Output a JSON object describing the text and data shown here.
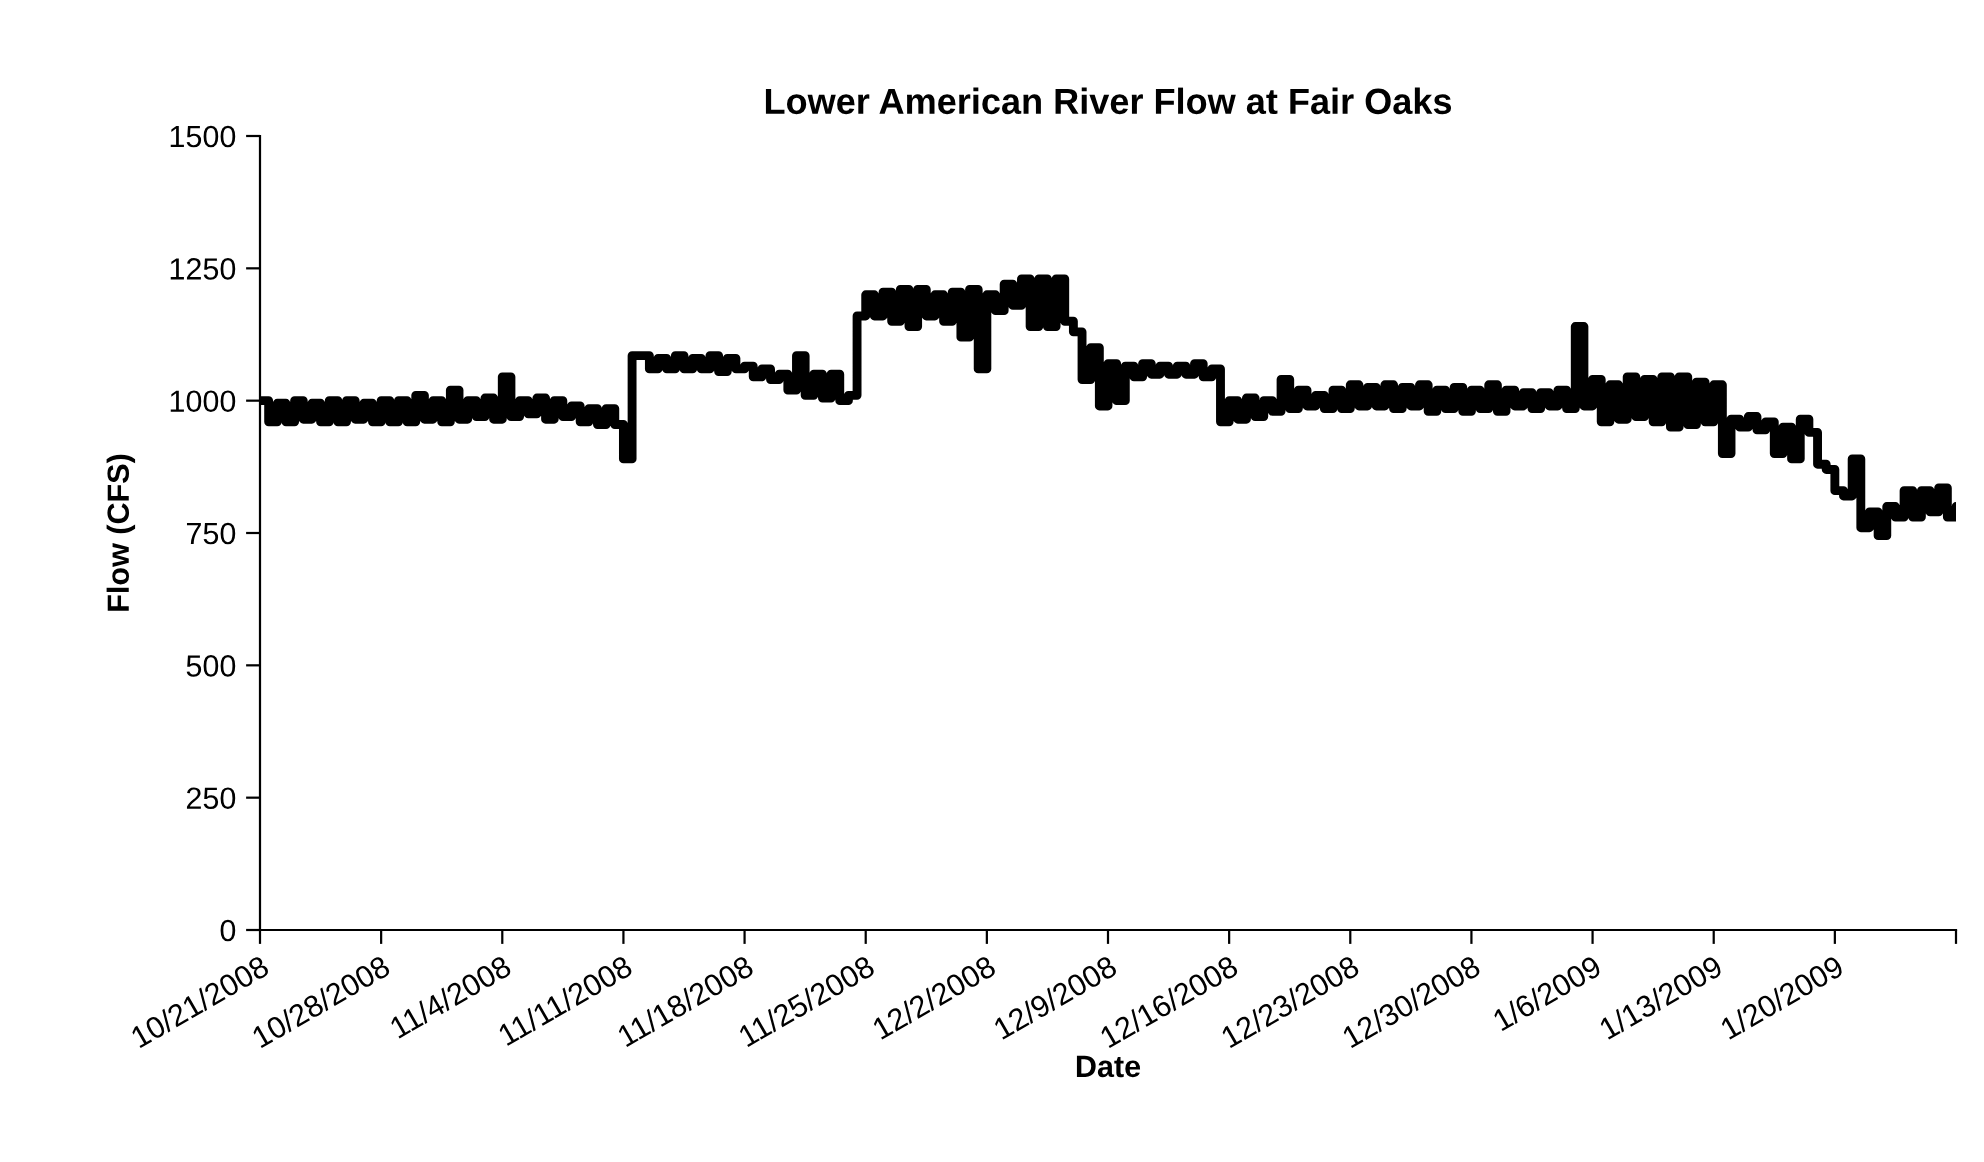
{
  "chart_data": {
    "type": "step",
    "title": "Lower American River Flow at Fair Oaks",
    "xlabel": "Date",
    "ylabel": "Flow (CFS)",
    "xlim": [
      "2008-10-21",
      "2009-01-27"
    ],
    "xticks": [
      {
        "value": "2008-10-21",
        "label": "10/21/2008"
      },
      {
        "value": "2008-10-28",
        "label": "10/28/2008"
      },
      {
        "value": "2008-11-04",
        "label": "11/4/2008"
      },
      {
        "value": "2008-11-11",
        "label": "11/11/2008"
      },
      {
        "value": "2008-11-18",
        "label": "11/18/2008"
      },
      {
        "value": "2008-11-25",
        "label": "11/25/2008"
      },
      {
        "value": "2008-12-02",
        "label": "12/2/2008"
      },
      {
        "value": "2008-12-09",
        "label": "12/9/2008"
      },
      {
        "value": "2008-12-16",
        "label": "12/16/2008"
      },
      {
        "value": "2008-12-23",
        "label": "12/23/2008"
      },
      {
        "value": "2008-12-30",
        "label": "12/30/2008"
      },
      {
        "value": "2009-01-06",
        "label": "1/6/2009"
      },
      {
        "value": "2009-01-13",
        "label": "1/13/2009"
      },
      {
        "value": "2009-01-20",
        "label": "1/20/2009"
      },
      {
        "value": "2009-01-27",
        "label": null
      }
    ],
    "ylim": [
      0,
      1500
    ],
    "yticks": [
      0,
      250,
      500,
      750,
      1000,
      1250,
      1500
    ],
    "grid": false,
    "legend": false,
    "line_style": "solid",
    "marker": "none",
    "series": [
      {
        "color": "#000000",
        "x": [
          "2008-10-21T00:00",
          "2008-10-21T12:00",
          "2008-10-22T00:00",
          "2008-10-22T12:00",
          "2008-10-23T00:00",
          "2008-10-23T12:00",
          "2008-10-24T00:00",
          "2008-10-24T12:00",
          "2008-10-25T00:00",
          "2008-10-25T12:00",
          "2008-10-26T00:00",
          "2008-10-26T12:00",
          "2008-10-27T00:00",
          "2008-10-27T12:00",
          "2008-10-28T00:00",
          "2008-10-28T12:00",
          "2008-10-29T00:00",
          "2008-10-29T12:00",
          "2008-10-30T00:00",
          "2008-10-30T12:00",
          "2008-10-31T00:00",
          "2008-10-31T12:00",
          "2008-11-01T00:00",
          "2008-11-01T12:00",
          "2008-11-02T00:00",
          "2008-11-02T12:00",
          "2008-11-03T00:00",
          "2008-11-03T12:00",
          "2008-11-04T00:00",
          "2008-11-04T12:00",
          "2008-11-05T00:00",
          "2008-11-05T12:00",
          "2008-11-06T00:00",
          "2008-11-06T12:00",
          "2008-11-07T00:00",
          "2008-11-07T12:00",
          "2008-11-08T00:00",
          "2008-11-08T12:00",
          "2008-11-09T00:00",
          "2008-11-09T12:00",
          "2008-11-10T00:00",
          "2008-11-10T12:00",
          "2008-11-11T00:00",
          "2008-11-11T12:00",
          "2008-11-12T00:00",
          "2008-11-12T12:00",
          "2008-11-13T00:00",
          "2008-11-13T12:00",
          "2008-11-14T00:00",
          "2008-11-14T12:00",
          "2008-11-15T00:00",
          "2008-11-15T12:00",
          "2008-11-16T00:00",
          "2008-11-16T12:00",
          "2008-11-17T00:00",
          "2008-11-17T12:00",
          "2008-11-18T00:00",
          "2008-11-18T12:00",
          "2008-11-19T00:00",
          "2008-11-19T12:00",
          "2008-11-20T00:00",
          "2008-11-20T12:00",
          "2008-11-21T00:00",
          "2008-11-21T12:00",
          "2008-11-22T00:00",
          "2008-11-22T12:00",
          "2008-11-23T00:00",
          "2008-11-23T12:00",
          "2008-11-24T00:00",
          "2008-11-24T12:00",
          "2008-11-25T00:00",
          "2008-11-25T12:00",
          "2008-11-26T00:00",
          "2008-11-26T12:00",
          "2008-11-27T00:00",
          "2008-11-27T12:00",
          "2008-11-28T00:00",
          "2008-11-28T12:00",
          "2008-11-29T00:00",
          "2008-11-29T12:00",
          "2008-11-30T00:00",
          "2008-11-30T12:00",
          "2008-12-01T00:00",
          "2008-12-01T12:00",
          "2008-12-02T00:00",
          "2008-12-02T12:00",
          "2008-12-03T00:00",
          "2008-12-03T12:00",
          "2008-12-04T00:00",
          "2008-12-04T12:00",
          "2008-12-05T00:00",
          "2008-12-05T12:00",
          "2008-12-06T00:00",
          "2008-12-06T12:00",
          "2008-12-07T00:00",
          "2008-12-07T12:00",
          "2008-12-08T00:00",
          "2008-12-08T12:00",
          "2008-12-09T00:00",
          "2008-12-09T12:00",
          "2008-12-10T00:00",
          "2008-12-10T12:00",
          "2008-12-11T00:00",
          "2008-12-11T12:00",
          "2008-12-12T00:00",
          "2008-12-12T12:00",
          "2008-12-13T00:00",
          "2008-12-13T12:00",
          "2008-12-14T00:00",
          "2008-12-14T12:00",
          "2008-12-15T00:00",
          "2008-12-15T12:00",
          "2008-12-16T00:00",
          "2008-12-16T12:00",
          "2008-12-17T00:00",
          "2008-12-17T12:00",
          "2008-12-18T00:00",
          "2008-12-18T12:00",
          "2008-12-19T00:00",
          "2008-12-19T12:00",
          "2008-12-20T00:00",
          "2008-12-20T12:00",
          "2008-12-21T00:00",
          "2008-12-21T12:00",
          "2008-12-22T00:00",
          "2008-12-22T12:00",
          "2008-12-23T00:00",
          "2008-12-23T12:00",
          "2008-12-24T00:00",
          "2008-12-24T12:00",
          "2008-12-25T00:00",
          "2008-12-25T12:00",
          "2008-12-26T00:00",
          "2008-12-26T12:00",
          "2008-12-27T00:00",
          "2008-12-27T12:00",
          "2008-12-28T00:00",
          "2008-12-28T12:00",
          "2008-12-29T00:00",
          "2008-12-29T12:00",
          "2008-12-30T00:00",
          "2008-12-30T12:00",
          "2008-12-31T00:00",
          "2008-12-31T12:00",
          "2009-01-01T00:00",
          "2009-01-01T12:00",
          "2009-01-02T00:00",
          "2009-01-02T12:00",
          "2009-01-03T00:00",
          "2009-01-03T12:00",
          "2009-01-04T00:00",
          "2009-01-04T12:00",
          "2009-01-05T00:00",
          "2009-01-05T12:00",
          "2009-01-06T00:00",
          "2009-01-06T12:00",
          "2009-01-07T00:00",
          "2009-01-07T12:00",
          "2009-01-08T00:00",
          "2009-01-08T12:00",
          "2009-01-09T00:00",
          "2009-01-09T12:00",
          "2009-01-10T00:00",
          "2009-01-10T12:00",
          "2009-01-11T00:00",
          "2009-01-11T12:00",
          "2009-01-12T00:00",
          "2009-01-12T12:00",
          "2009-01-13T00:00",
          "2009-01-13T12:00",
          "2009-01-14T00:00",
          "2009-01-14T12:00",
          "2009-01-15T00:00",
          "2009-01-15T12:00",
          "2009-01-16T00:00",
          "2009-01-16T12:00",
          "2009-01-17T00:00",
          "2009-01-17T12:00",
          "2009-01-18T00:00",
          "2009-01-18T12:00",
          "2009-01-19T00:00",
          "2009-01-19T12:00",
          "2009-01-20T00:00",
          "2009-01-20T12:00",
          "2009-01-21T00:00",
          "2009-01-21T12:00",
          "2009-01-22T00:00",
          "2009-01-22T12:00",
          "2009-01-23T00:00",
          "2009-01-23T12:00",
          "2009-01-24T00:00",
          "2009-01-24T12:00",
          "2009-01-25T00:00",
          "2009-01-25T12:00",
          "2009-01-26T00:00",
          "2009-01-26T12:00",
          "2009-01-27T00:00"
        ],
        "values": [
          1000,
          960,
          995,
          960,
          1000,
          965,
          995,
          960,
          1000,
          960,
          1000,
          965,
          995,
          960,
          1000,
          960,
          1000,
          960,
          1010,
          965,
          1000,
          960,
          1020,
          965,
          1000,
          970,
          1005,
          965,
          1045,
          970,
          1000,
          975,
          1005,
          965,
          1000,
          970,
          990,
          960,
          985,
          955,
          985,
          955,
          890,
          1085,
          1085,
          1060,
          1080,
          1060,
          1085,
          1060,
          1080,
          1060,
          1085,
          1055,
          1080,
          1060,
          1065,
          1045,
          1060,
          1040,
          1050,
          1020,
          1085,
          1010,
          1050,
          1005,
          1050,
          1000,
          1010,
          1160,
          1200,
          1160,
          1205,
          1150,
          1210,
          1140,
          1210,
          1160,
          1200,
          1150,
          1205,
          1120,
          1210,
          1060,
          1200,
          1170,
          1220,
          1180,
          1230,
          1140,
          1230,
          1140,
          1230,
          1150,
          1130,
          1040,
          1100,
          990,
          1070,
          1000,
          1065,
          1045,
          1070,
          1050,
          1065,
          1050,
          1065,
          1050,
          1070,
          1045,
          1060,
          960,
          1000,
          965,
          1005,
          970,
          1000,
          980,
          1040,
          985,
          1020,
          990,
          1010,
          985,
          1020,
          985,
          1030,
          990,
          1025,
          990,
          1030,
          985,
          1025,
          990,
          1030,
          980,
          1020,
          985,
          1025,
          980,
          1020,
          985,
          1030,
          980,
          1020,
          990,
          1015,
          985,
          1015,
          990,
          1020,
          985,
          1140,
          990,
          1040,
          960,
          1030,
          965,
          1045,
          970,
          1040,
          960,
          1045,
          950,
          1045,
          955,
          1035,
          960,
          1030,
          900,
          965,
          950,
          970,
          945,
          960,
          900,
          950,
          890,
          965,
          940,
          880,
          870,
          830,
          820,
          890,
          760,
          790,
          745,
          800,
          780,
          830,
          780,
          830,
          790,
          835,
          780,
          800
        ]
      }
    ]
  }
}
